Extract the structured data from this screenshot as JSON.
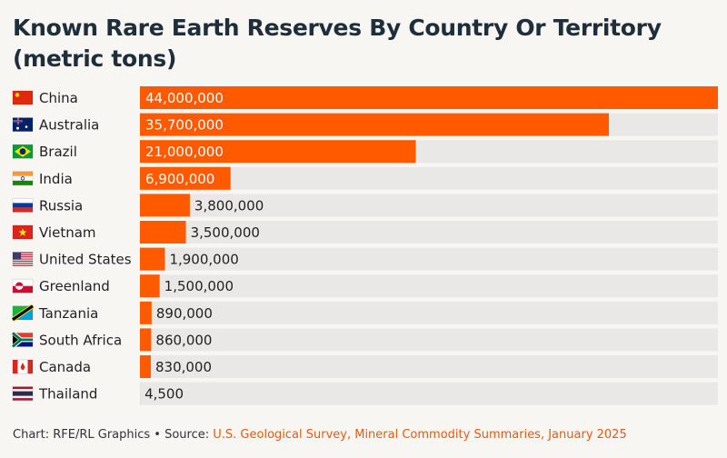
{
  "chart_data": {
    "type": "bar",
    "orientation": "horizontal",
    "title": "Known Rare Earth Reserves By Country Or Territory (metric tons)",
    "categories": [
      "China",
      "Australia",
      "Brazil",
      "India",
      "Russia",
      "Vietnam",
      "United States",
      "Greenland",
      "Tanzania",
      "South Africa",
      "Canada",
      "Thailand"
    ],
    "values": [
      44000000,
      35700000,
      21000000,
      6900000,
      3800000,
      3500000,
      1900000,
      1500000,
      890000,
      860000,
      830000,
      4500
    ],
    "value_labels": [
      "44,000,000",
      "35,700,000",
      "21,000,000",
      "6,900,000",
      "3,800,000",
      "3,500,000",
      "1,900,000",
      "1,500,000",
      "890,000",
      "860,000",
      "830,000",
      "4,500"
    ],
    "flag_icons": [
      "china-flag-icon",
      "australia-flag-icon",
      "brazil-flag-icon",
      "india-flag-icon",
      "russia-flag-icon",
      "vietnam-flag-icon",
      "united-states-flag-icon",
      "greenland-flag-icon",
      "tanzania-flag-icon",
      "south-africa-flag-icon",
      "canada-flag-icon",
      "thailand-flag-icon"
    ],
    "xlim": [
      0,
      44000000
    ],
    "bar_color": "#ff5a00",
    "track_color": "#e9e8e6",
    "grid": false,
    "legend": "none"
  },
  "footer": {
    "prefix": "Chart: RFE/RL Graphics • Source: ",
    "source": "U.S. Geological Survey, Mineral Commodity Summaries, January 2025"
  },
  "colors": {
    "accent": "#ff5a00",
    "title": "#1e2e3a",
    "source_link": "#e55a10"
  }
}
